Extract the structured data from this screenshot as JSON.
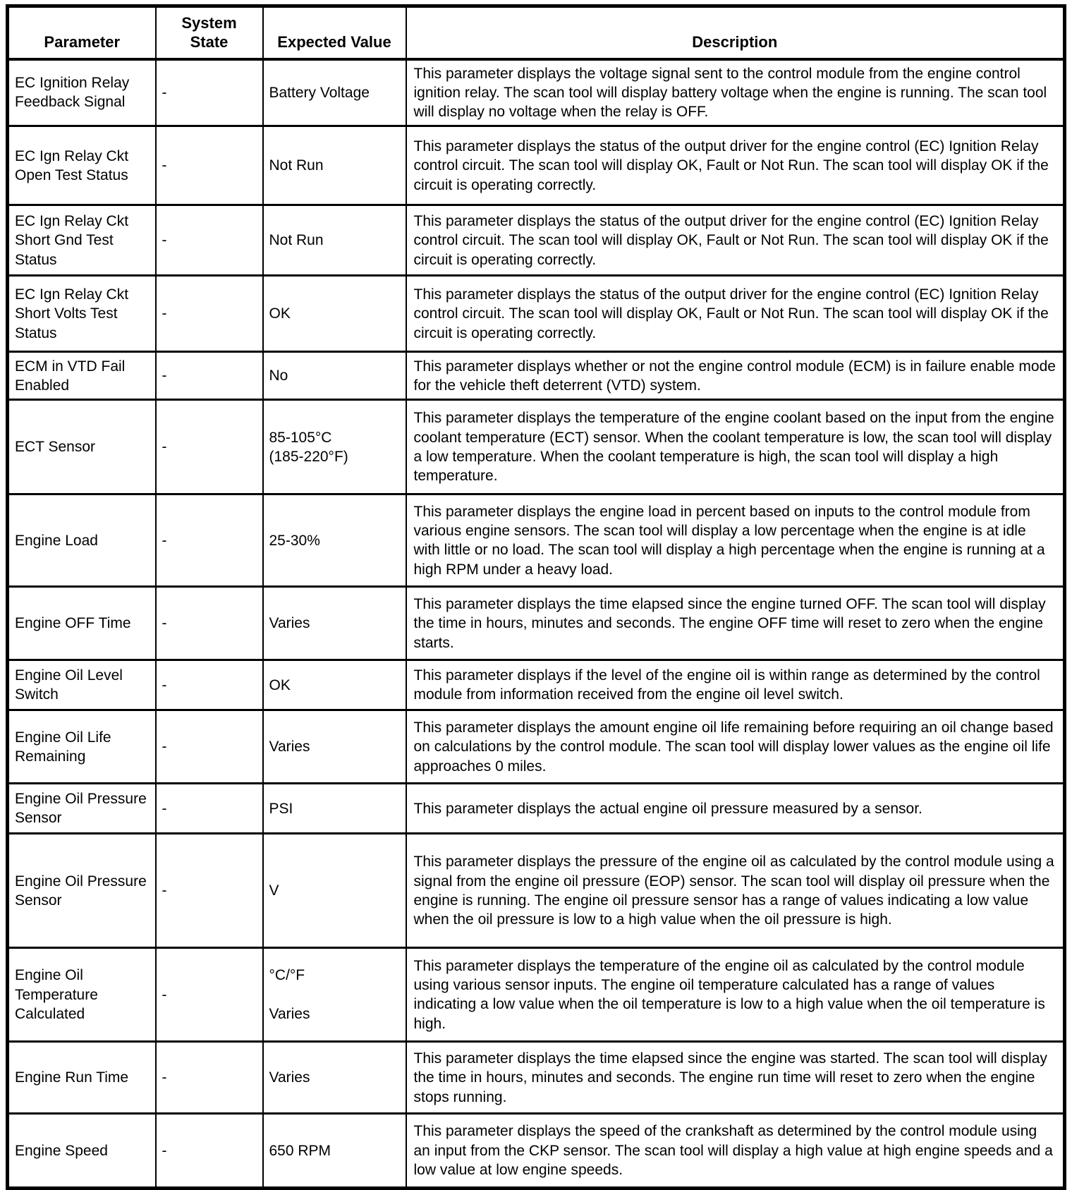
{
  "table": {
    "headers": {
      "parameter": "Parameter",
      "system_state": "System\nState",
      "expected_value": "Expected Value",
      "description": "Description"
    },
    "rows": [
      {
        "parameter": "EC Ignition Relay Feedback Signal",
        "system_state": "-",
        "expected_value": "Battery Voltage",
        "description": "This parameter displays the voltage signal sent to the control module from the engine control ignition relay. The scan tool will display battery voltage when the engine is running. The scan tool will display no voltage when the relay is OFF."
      },
      {
        "parameter": "EC Ign Relay Ckt Open Test Status",
        "system_state": "-",
        "expected_value": "Not Run",
        "description": "This parameter displays the status of the output driver for the engine control (EC) Ignition Relay control circuit. The scan tool will display OK, Fault or Not Run. The scan tool will display OK if the circuit is operating correctly."
      },
      {
        "parameter": "EC Ign Relay Ckt Short Gnd Test Status",
        "system_state": "-",
        "expected_value": "Not Run",
        "description": "This parameter displays the status of the output driver for the engine control (EC) Ignition Relay control circuit. The scan tool will display OK, Fault or Not Run. The scan tool will display OK if the circuit is operating correctly."
      },
      {
        "parameter": "EC Ign Relay Ckt Short Volts Test Status",
        "system_state": "-",
        "expected_value": "OK",
        "description": "This parameter displays the status of the output driver for the engine control (EC) Ignition Relay control circuit. The scan tool will display OK, Fault or Not Run. The scan tool will display OK if the circuit is operating correctly."
      },
      {
        "parameter": "ECM in VTD Fail Enabled",
        "system_state": "-",
        "expected_value": "No",
        "description": "This parameter displays whether or not the engine control module (ECM) is in failure enable mode for the vehicle theft deterrent (VTD) system."
      },
      {
        "parameter": "ECT Sensor",
        "system_state": "-",
        "expected_value": "85-105°C\n(185-220°F)",
        "description": "This parameter displays the temperature of the engine coolant based on the input from the engine coolant temperature (ECT) sensor. When the coolant temperature is low, the scan tool will display a low temperature. When the coolant temperature is high, the scan tool will display a high temperature."
      },
      {
        "parameter": "Engine Load",
        "system_state": "-",
        "expected_value": "25-30%",
        "description": "This parameter displays the engine load in percent based on inputs to the control module from various engine sensors. The scan tool will display a low percentage when the engine is at idle with little or no load. The scan tool will display a high percentage when the engine is running at a high RPM under a heavy load."
      },
      {
        "parameter": "Engine OFF Time",
        "system_state": "-",
        "expected_value": "Varies",
        "description": "This parameter displays the time elapsed since the engine turned OFF. The scan tool will display the time in hours, minutes and seconds. The engine OFF time will reset to zero when the engine starts."
      },
      {
        "parameter": "Engine Oil Level Switch",
        "system_state": "-",
        "expected_value": "OK",
        "description": "This parameter displays if the level of the engine oil is within range as determined by the control module from information received from the engine oil level switch."
      },
      {
        "parameter": "Engine Oil Life Remaining",
        "system_state": "-",
        "expected_value": "Varies",
        "description": "This parameter displays the amount engine oil life remaining before requiring an oil change based on calculations by the control module. The scan tool will display lower values as the engine oil life approaches 0 miles."
      },
      {
        "parameter": "Engine Oil Pressure Sensor",
        "system_state": "-",
        "expected_value": "PSI",
        "description": "This parameter displays the actual engine oil pressure measured by a sensor."
      },
      {
        "parameter": "Engine Oil Pressure Sensor",
        "system_state": "-",
        "expected_value": "V",
        "description": "This parameter displays the pressure of the engine oil as calculated by the control module using a signal from the engine oil pressure (EOP) sensor. The scan tool will display oil pressure when the engine is running. The engine oil pressure sensor has a range of values indicating a low value when the oil pressure is low to a high value when the oil pressure is high."
      },
      {
        "parameter": "Engine Oil Temperature Calculated",
        "system_state": "-",
        "expected_value": "°C/°F\n\nVaries",
        "description": "This parameter displays the temperature of the engine oil as calculated by the control module using various sensor inputs. The engine oil temperature calculated has a range of values indicating a low value when the oil temperature is low to a high value when the oil temperature is high."
      },
      {
        "parameter": "Engine Run Time",
        "system_state": "-",
        "expected_value": "Varies",
        "description": "This parameter displays the time elapsed since the engine was started. The scan tool will display the time in hours, minutes and seconds. The engine run time will reset to zero when the engine stops running."
      },
      {
        "parameter": "Engine Speed",
        "system_state": "-",
        "expected_value": "650 RPM",
        "description": "This parameter displays the speed of the crankshaft as determined by the control module using an input from the CKP sensor. The scan tool will display a high value at high engine speeds and a low value at low engine speeds."
      }
    ]
  }
}
